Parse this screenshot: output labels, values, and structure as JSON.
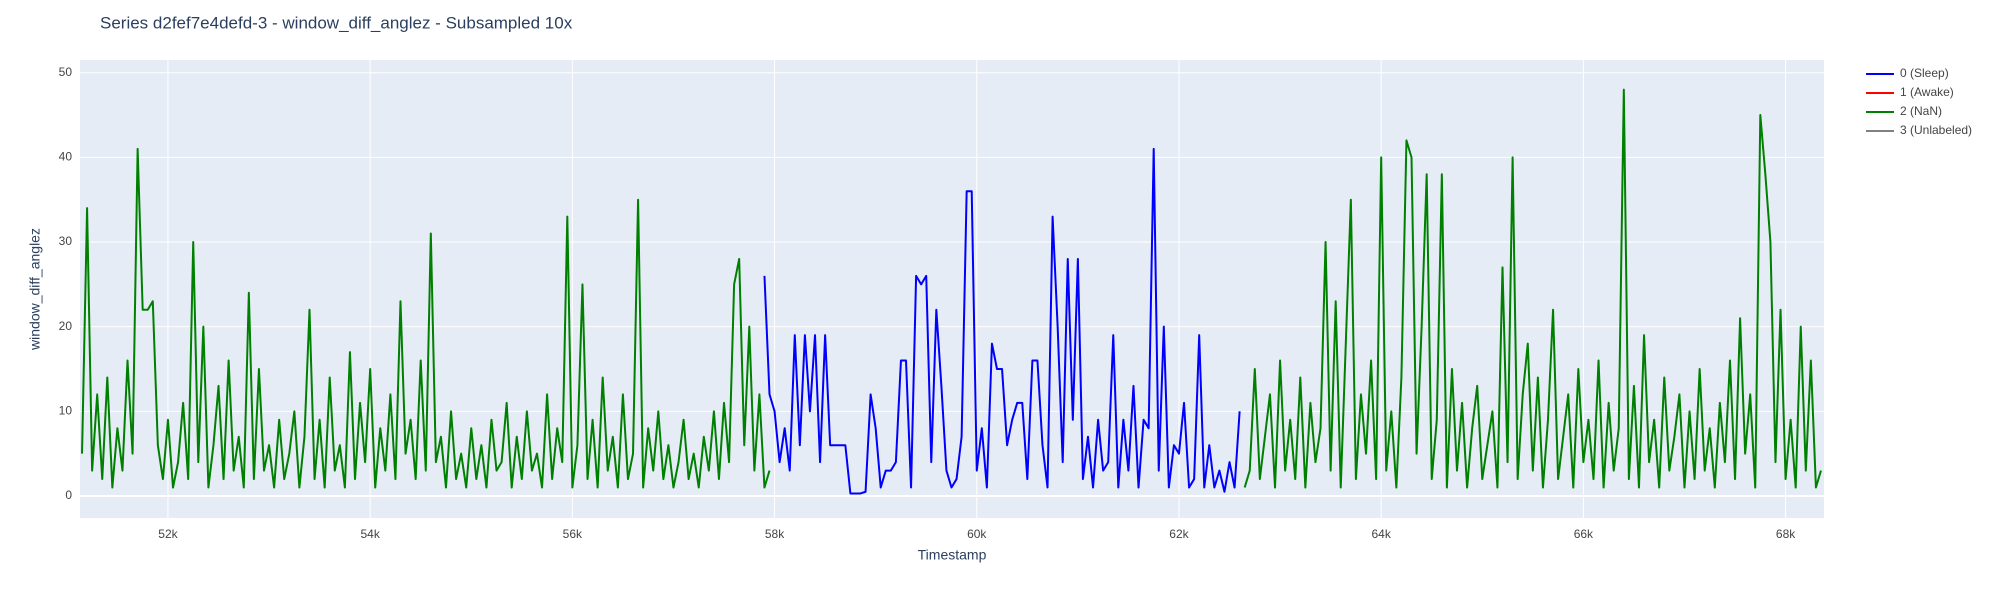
{
  "chart_data": {
    "type": "line",
    "title": "Series d2fef7e4defd-3 - window_diff_anglez - Subsampled 10x",
    "x_label": "Timestamp",
    "y_label": "window_diff_anglez",
    "xlim": [
      51130,
      68380
    ],
    "ylim": [
      -2.6,
      51.5
    ],
    "xticks": [
      {
        "value": 52000,
        "label": "52k"
      },
      {
        "value": 54000,
        "label": "54k"
      },
      {
        "value": 56000,
        "label": "56k"
      },
      {
        "value": 58000,
        "label": "58k"
      },
      {
        "value": 60000,
        "label": "60k"
      },
      {
        "value": 62000,
        "label": "62k"
      },
      {
        "value": 64000,
        "label": "64k"
      },
      {
        "value": 66000,
        "label": "66k"
      },
      {
        "value": 68000,
        "label": "68k"
      }
    ],
    "yticks": [
      0,
      10,
      20,
      30,
      40,
      50
    ],
    "grid": true,
    "legend": "right",
    "series": [
      {
        "name": "0 (Sleep)",
        "color": "#0000ff",
        "x": [
          57900,
          57950,
          58000,
          58050,
          58100,
          58150,
          58200,
          58250,
          58300,
          58350,
          58400,
          58450,
          58500,
          58550,
          58600,
          58650,
          58700,
          58750,
          58800,
          58850,
          58900,
          58950,
          59000,
          59050,
          59100,
          59150,
          59200,
          59250,
          59300,
          59350,
          59400,
          59450,
          59500,
          59550,
          59600,
          59650,
          59700,
          59750,
          59800,
          59850,
          59900,
          59950,
          60000,
          60050,
          60100,
          60150,
          60200,
          60250,
          60300,
          60350,
          60400,
          60450,
          60500,
          60550,
          60600,
          60650,
          60700,
          60750,
          60800,
          60850,
          60900,
          60950,
          61000,
          61050,
          61100,
          61150,
          61200,
          61250,
          61300,
          61350,
          61400,
          61450,
          61500,
          61550,
          61600,
          61650,
          61700,
          61750,
          61800,
          61850,
          61900,
          61950,
          62000,
          62050,
          62100,
          62150,
          62200,
          62250,
          62300,
          62350,
          62400,
          62450,
          62500,
          62550,
          62600
        ],
        "values": [
          26,
          12,
          10,
          4,
          8,
          3,
          19,
          6,
          19,
          10,
          19,
          4,
          19,
          6,
          6,
          6,
          6,
          0.3,
          0.3,
          0.3,
          0.5,
          12,
          8,
          1,
          3,
          3,
          4,
          16,
          16,
          1,
          26,
          25,
          26,
          4,
          22,
          13,
          3,
          1,
          2,
          7,
          36,
          36,
          3,
          8,
          1,
          18,
          15,
          15,
          6,
          9,
          11,
          11,
          2,
          16,
          16,
          6,
          1,
          33,
          20,
          4,
          28,
          9,
          28,
          2,
          7,
          1,
          9,
          3,
          4,
          19,
          1,
          9,
          3,
          13,
          1,
          9,
          8,
          41,
          3,
          20,
          1,
          6,
          5,
          11,
          1,
          2,
          19,
          1,
          6,
          1,
          3,
          0.5,
          4,
          1,
          10
        ]
      },
      {
        "name": "1 (Awake)",
        "color": "#ff0000",
        "x": [],
        "values": []
      },
      {
        "name": "2 (NaN)",
        "color": "#008000",
        "x": [
          51150,
          51200,
          51250,
          51300,
          51350,
          51400,
          51450,
          51500,
          51550,
          51600,
          51650,
          51700,
          51750,
          51800,
          51850,
          51900,
          51950,
          52000,
          52050,
          52100,
          52150,
          52200,
          52250,
          52300,
          52350,
          52400,
          52450,
          52500,
          52550,
          52600,
          52650,
          52700,
          52750,
          52800,
          52850,
          52900,
          52950,
          53000,
          53050,
          53100,
          53150,
          53200,
          53250,
          53300,
          53350,
          53400,
          53450,
          53500,
          53550,
          53600,
          53650,
          53700,
          53750,
          53800,
          53850,
          53900,
          53950,
          54000,
          54050,
          54100,
          54150,
          54200,
          54250,
          54300,
          54350,
          54400,
          54450,
          54500,
          54550,
          54600,
          54650,
          54700,
          54750,
          54800,
          54850,
          54900,
          54950,
          55000,
          55050,
          55100,
          55150,
          55200,
          55250,
          55300,
          55350,
          55400,
          55450,
          55500,
          55550,
          55600,
          55650,
          55700,
          55750,
          55800,
          55850,
          55900,
          55950,
          56000,
          56050,
          56100,
          56150,
          56200,
          56250,
          56300,
          56350,
          56400,
          56450,
          56500,
          56550,
          56600,
          56650,
          56700,
          56750,
          56800,
          56850,
          56900,
          56950,
          57000,
          57050,
          57100,
          57150,
          57200,
          57250,
          57300,
          57350,
          57400,
          57450,
          57500,
          57550,
          57600,
          57650,
          57700,
          57750,
          57800,
          57850,
          57900,
          57950,
          58000,
          62650,
          62700,
          62750,
          62800,
          62850,
          62900,
          62950,
          63000,
          63050,
          63100,
          63150,
          63200,
          63250,
          63300,
          63350,
          63400,
          63450,
          63500,
          63550,
          63600,
          63650,
          63700,
          63750,
          63800,
          63850,
          63900,
          63950,
          64000,
          64050,
          64100,
          64150,
          64200,
          64250,
          64300,
          64350,
          64400,
          64450,
          64500,
          64550,
          64600,
          64650,
          64700,
          64750,
          64800,
          64850,
          64900,
          64950,
          65000,
          65050,
          65100,
          65150,
          65200,
          65250,
          65300,
          65350,
          65400,
          65450,
          65500,
          65550,
          65600,
          65650,
          65700,
          65750,
          65800,
          65850,
          65900,
          65950,
          66000,
          66050,
          66100,
          66150,
          66200,
          66250,
          66300,
          66350,
          66400,
          66450,
          66500,
          66550,
          66600,
          66650,
          66700,
          66750,
          66800,
          66850,
          66900,
          66950,
          67000,
          67050,
          67100,
          67150,
          67200,
          67250,
          67300,
          67350,
          67400,
          67450,
          67500,
          67550,
          67600,
          67650,
          67700,
          67750,
          67800,
          67850,
          67900,
          67950,
          68000,
          68050,
          68100,
          68150,
          68200,
          68250,
          68300,
          68350
        ],
        "values": [
          5,
          34,
          3,
          12,
          2,
          14,
          1,
          8,
          3,
          16,
          5,
          41,
          22,
          22,
          23,
          6,
          2,
          9,
          1,
          4,
          11,
          2,
          30,
          4,
          20,
          1,
          6,
          13,
          2,
          16,
          3,
          7,
          1,
          24,
          2,
          15,
          3,
          6,
          1,
          9,
          2,
          5,
          10,
          1,
          7,
          22,
          2,
          9,
          1,
          14,
          3,
          6,
          1,
          17,
          2,
          11,
          4,
          15,
          1,
          8,
          3,
          12,
          2,
          23,
          5,
          9,
          2,
          16,
          3,
          31,
          4,
          7,
          1,
          10,
          2,
          5,
          1,
          8,
          2,
          6,
          1,
          9,
          3,
          4,
          11,
          1,
          7,
          2,
          10,
          3,
          5,
          1,
          12,
          2,
          8,
          4,
          33,
          1,
          6,
          25,
          2,
          9,
          1,
          14,
          3,
          7,
          1,
          12,
          2,
          5,
          35,
          1,
          8,
          3,
          10,
          2,
          6,
          1,
          4,
          9,
          2,
          5,
          1,
          7,
          3,
          10,
          2,
          11,
          4,
          25,
          28,
          6,
          20,
          3,
          12,
          1,
          3,
          null,
          1,
          3,
          15,
          2,
          7,
          12,
          1,
          16,
          3,
          9,
          2,
          14,
          1,
          11,
          4,
          8,
          30,
          3,
          23,
          1,
          18,
          35,
          2,
          12,
          5,
          16,
          2,
          40,
          3,
          10,
          1,
          14,
          42,
          40,
          5,
          20,
          38,
          2,
          9,
          38,
          1,
          15,
          3,
          11,
          1,
          8,
          13,
          2,
          6,
          10,
          1,
          27,
          4,
          40,
          2,
          12,
          18,
          3,
          14,
          1,
          9,
          22,
          2,
          7,
          12,
          1,
          15,
          4,
          9,
          2,
          16,
          1,
          11,
          3,
          8,
          48,
          2,
          13,
          1,
          19,
          4,
          9,
          1,
          14,
          3,
          7,
          12,
          1,
          10,
          2,
          15,
          3,
          8,
          1,
          11,
          4,
          16,
          2,
          21,
          5,
          12,
          1,
          45,
          38,
          30,
          4,
          22,
          2,
          9,
          1,
          20,
          3,
          16,
          1,
          3
        ]
      },
      {
        "name": "3 (Unlabeled)",
        "color": "#808080",
        "x": [],
        "values": []
      }
    ]
  }
}
